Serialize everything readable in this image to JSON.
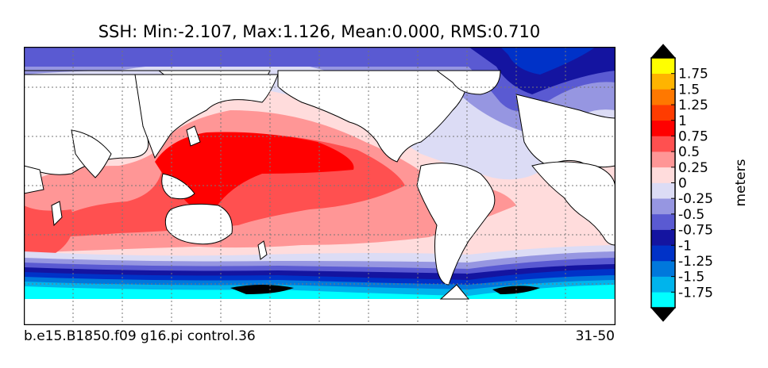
{
  "chart_data": {
    "type": "contour-map",
    "title": "SSH: Min:-2.107, Max:1.126, Mean:0.000, RMS:0.710",
    "stats": {
      "min": -2.107,
      "max": 1.126,
      "mean": 0.0,
      "rms": 0.71
    },
    "footer_left": "b.e15.B1850.f09 g16.pi control.36",
    "footer_right": "31-50",
    "colorbar": {
      "label": "meters",
      "extend": "both",
      "levels": [
        -1.75,
        -1.5,
        -1.25,
        -1,
        -0.75,
        -0.5,
        -0.25,
        0,
        0.25,
        0.5,
        0.75,
        1,
        1.25,
        1.5,
        1.75
      ],
      "tick_labels": [
        "-1.75",
        "-1.5",
        "-1.25",
        "-1",
        "-0.75",
        "-0.5",
        "-0.25",
        "0",
        "0.25",
        "0.5",
        "0.75",
        "1",
        "1.25",
        "1.5",
        "1.75"
      ],
      "colors": [
        "#00ffff",
        "#00b4ec",
        "#0078dc",
        "#0032c8",
        "#1414a0",
        "#5a5ad2",
        "#9696e1",
        "#dcdcf5",
        "#ffdcdc",
        "#ff9696",
        "#ff5050",
        "#ff0000",
        "#ff3c00",
        "#ff7800",
        "#ffb400",
        "#ffff00"
      ],
      "under_color": "#000000",
      "over_color": "#000000"
    },
    "map": {
      "projection": "equirectangular",
      "gridlines": true,
      "land_color": "#ffffff"
    }
  }
}
